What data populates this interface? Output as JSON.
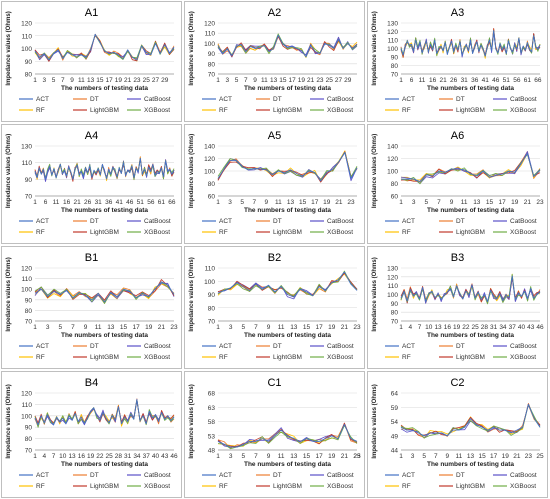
{
  "page": {
    "models": [
      {
        "name": "ACT",
        "color": "#4472C4"
      },
      {
        "name": "DT",
        "color": "#ED7D31"
      },
      {
        "name": "CatBoost",
        "color": "#5B4FC9"
      },
      {
        "name": "RF",
        "color": "#FFC000"
      },
      {
        "name": "LightGBM",
        "color": "#C0392B"
      },
      {
        "name": "XGBoost",
        "color": "#70AD47"
      }
    ],
    "common_xlabel": "The numbers of testing data",
    "common_ylabel": "Impedance values  (Ohms)"
  },
  "chart_data": [
    {
      "type": "line",
      "title": "A1",
      "xlabel": "The numbers of testing data",
      "ylabel": "Impedance values  (Ohms)",
      "ylim": [
        80,
        120
      ],
      "yticks": [
        80,
        90,
        100,
        110,
        120
      ],
      "xticks": [
        1,
        3,
        5,
        7,
        9,
        11,
        13,
        15,
        17,
        19,
        21,
        23,
        25,
        27,
        29
      ],
      "legend": [
        "ACT",
        "DT",
        "CatBoost",
        "RF",
        "LightGBM",
        "XGBoost"
      ],
      "series": [
        {
          "name": "ACT",
          "values": [
            98,
            93,
            96,
            91,
            96,
            99,
            92,
            97,
            95,
            94,
            95,
            93,
            99,
            111,
            105,
            98,
            96,
            97,
            95,
            92,
            99,
            93,
            91,
            102,
            97,
            95,
            104,
            96,
            103,
            96,
            101
          ]
        }
      ]
    },
    {
      "type": "line",
      "title": "A2",
      "xlabel": "The numbers of testing data",
      "ylabel": "Impedance values  (Ohms)",
      "ylim": [
        70,
        120
      ],
      "yticks": [
        70,
        80,
        90,
        100,
        110,
        120
      ],
      "xticks": [
        1,
        3,
        5,
        7,
        9,
        11,
        13,
        15,
        17,
        19,
        21,
        23,
        25,
        27,
        29
      ],
      "legend": [
        "ACT",
        "DT",
        "CatBoost",
        "RF",
        "LightGBM",
        "XGBoost"
      ],
      "series": [
        {
          "name": "ACT",
          "values": [
            98,
            90,
            95,
            88,
            97,
            99,
            92,
            97,
            95,
            96,
            98,
            92,
            95,
            108,
            99,
            96,
            97,
            95,
            93,
            87,
            98,
            92,
            90,
            100,
            98,
            95,
            104,
            95,
            100,
            95,
            99
          ]
        }
      ]
    },
    {
      "type": "line",
      "title": "A3",
      "xlabel": "The numbers of testing data",
      "ylabel": "Impedance values  (Ohms)",
      "ylim": [
        70,
        130
      ],
      "yticks": [
        70,
        80,
        90,
        100,
        110,
        120,
        130
      ],
      "xticks": [
        1,
        6,
        11,
        16,
        21,
        26,
        31,
        36,
        41,
        46,
        51,
        56,
        61,
        66
      ],
      "legend": [
        "ACT",
        "DT",
        "CatBoost",
        "RF",
        "LightGBM",
        "XGBoost"
      ],
      "series": [
        {
          "name": "ACT",
          "values": [
            100,
            92,
            103,
            108,
            104,
            105,
            97,
            110,
            100,
            108,
            95,
            102,
            109,
            96,
            105,
            98,
            110,
            94,
            100,
            103,
            97,
            107,
            93,
            101,
            109,
            96,
            104,
            98,
            108,
            92,
            100,
            105,
            97,
            110,
            94,
            102,
            108,
            96,
            104,
            99,
            91,
            103,
            110,
            97,
            121,
            100,
            95,
            106,
            98,
            103,
            94,
            109,
            100,
            96,
            105,
            99,
            112,
            95,
            103,
            98,
            107,
            100,
            96,
            115,
            101,
            99,
            104
          ]
        }
      ]
    },
    {
      "type": "line",
      "title": "A4",
      "xlabel": "The numbers of testing data",
      "ylabel": "Impedance values  (Ohms)",
      "ylim": [
        70,
        130
      ],
      "yticks": [
        70,
        90,
        110,
        130
      ],
      "xticks": [
        1,
        6,
        11,
        16,
        21,
        26,
        31,
        36,
        41,
        46,
        51,
        56,
        61,
        66
      ],
      "legend": [
        "ACT",
        "DT",
        "CatBoost",
        "RF",
        "LightGBM",
        "XGBoost"
      ],
      "series": [
        {
          "name": "ACT",
          "values": [
            100,
            92,
            104,
            96,
            102,
            90,
            100,
            106,
            95,
            103,
            92,
            100,
            108,
            96,
            101,
            94,
            105,
            99,
            90,
            103,
            107,
            95,
            100,
            93,
            104,
            98,
            106,
            92,
            101,
            97,
            103,
            95,
            108,
            99,
            91,
            102,
            96,
            105,
            100,
            93,
            104,
            97,
            110,
            95,
            101,
            98,
            106,
            92,
            103,
            99,
            115,
            96,
            102,
            94,
            105,
            99,
            108,
            95,
            100,
            97,
            104,
            93,
            112,
            99,
            102,
            96,
            101
          ]
        }
      ]
    },
    {
      "type": "line",
      "title": "A5",
      "xlabel": "The numbers of testing data",
      "ylabel": "Impedance values  (Ohms)",
      "ylim": [
        60,
        140
      ],
      "yticks": [
        60,
        80,
        100,
        120,
        140
      ],
      "xticks": [
        1,
        3,
        5,
        7,
        9,
        11,
        13,
        15,
        17,
        19,
        21,
        23
      ],
      "legend": [
        "ACT",
        "DT",
        "CatBoost",
        "RF",
        "LightGBM",
        "XGBoost"
      ],
      "series": [
        {
          "name": "ACT",
          "values": [
            88,
            103,
            117,
            117,
            107,
            102,
            104,
            103,
            102,
            94,
            100,
            97,
            102,
            96,
            92,
            100,
            98,
            84,
            98,
            103,
            115,
            130,
            88,
            105
          ]
        }
      ]
    },
    {
      "type": "line",
      "title": "A6",
      "xlabel": "The numbers of testing data",
      "ylabel": "Impedance values  (Ohms)",
      "ylim": [
        60,
        140
      ],
      "yticks": [
        60,
        80,
        100,
        120,
        140
      ],
      "xticks": [
        1,
        3,
        5,
        7,
        9,
        11,
        13,
        15,
        17,
        19,
        21,
        23
      ],
      "legend": [
        "ACT",
        "DT",
        "CatBoost",
        "RF",
        "LightGBM",
        "XGBoost"
      ],
      "series": [
        {
          "name": "ACT",
          "values": [
            87,
            87,
            87,
            83,
            94,
            92,
            100,
            98,
            103,
            103,
            102,
            96,
            92,
            100,
            90,
            93,
            95,
            100,
            98,
            112,
            128,
            91,
            101
          ]
        }
      ]
    },
    {
      "type": "line",
      "title": "B1",
      "xlabel": "The numbers of testing data",
      "ylabel": "Impedance values  (Ohms)",
      "ylim": [
        70,
        120
      ],
      "yticks": [
        70,
        80,
        90,
        100,
        110,
        120
      ],
      "xticks": [
        1,
        3,
        5,
        7,
        9,
        11,
        13,
        15,
        17,
        19,
        21,
        23
      ],
      "legend": [
        "ACT",
        "DT",
        "CatBoost",
        "RF",
        "LightGBM",
        "XGBoost"
      ],
      "series": [
        {
          "name": "ACT",
          "values": [
            96,
            100,
            93,
            98,
            95,
            99,
            92,
            97,
            94,
            90,
            96,
            88,
            97,
            93,
            100,
            98,
            92,
            96,
            93,
            100,
            107,
            104,
            95
          ]
        }
      ]
    },
    {
      "type": "line",
      "title": "B2",
      "xlabel": "The numbers of testing data",
      "ylabel": "Impedance values  (Ohms)",
      "ylim": [
        70,
        110
      ],
      "yticks": [
        70,
        80,
        90,
        100,
        110
      ],
      "xticks": [
        1,
        3,
        5,
        7,
        9,
        11,
        13,
        15,
        17,
        19,
        21,
        23
      ],
      "legend": [
        "ACT",
        "DT",
        "CatBoost",
        "RF",
        "LightGBM",
        "XGBoost"
      ],
      "series": [
        {
          "name": "ACT",
          "values": [
            91,
            93,
            95,
            99,
            96,
            93,
            98,
            94,
            97,
            92,
            96,
            90,
            88,
            94,
            92,
            89,
            96,
            93,
            99,
            101,
            107,
            98,
            93
          ]
        }
      ]
    },
    {
      "type": "line",
      "title": "B3",
      "xlabel": "The numbers of testing data",
      "ylabel": "Impedance values  (Ohms)",
      "ylim": [
        70,
        130
      ],
      "yticks": [
        70,
        80,
        90,
        100,
        110,
        120,
        130
      ],
      "xticks": [
        1,
        4,
        7,
        10,
        13,
        16,
        19,
        22,
        25,
        28,
        31,
        34,
        37,
        40,
        43,
        46
      ],
      "legend": [
        "ACT",
        "DT",
        "CatBoost",
        "RF",
        "LightGBM",
        "XGBoost"
      ],
      "series": [
        {
          "name": "ACT",
          "values": [
            96,
            104,
            93,
            106,
            98,
            102,
            95,
            108,
            92,
            100,
            104,
            96,
            101,
            94,
            99,
            103,
            107,
            97,
            110,
            101,
            95,
            104,
            99,
            111,
            96,
            103,
            94,
            100,
            92,
            105,
            98,
            95,
            101,
            93,
            100,
            96,
            121,
            94,
            102,
            98,
            104,
            95,
            107,
            96,
            100,
            103
          ]
        }
      ]
    },
    {
      "type": "line",
      "title": "B4",
      "xlabel": "The numbers of testing data",
      "ylabel": "Impedance values  (Ohms)",
      "ylim": [
        70,
        120
      ],
      "yticks": [
        70,
        80,
        90,
        100,
        110,
        120
      ],
      "xticks": [
        1,
        4,
        7,
        10,
        13,
        16,
        19,
        22,
        25,
        28,
        31,
        34,
        37,
        40,
        43,
        46
      ],
      "legend": [
        "ACT",
        "DT",
        "CatBoost",
        "RF",
        "LightGBM",
        "XGBoost"
      ],
      "series": [
        {
          "name": "ACT",
          "values": [
            98,
            92,
            100,
            94,
            101,
            96,
            92,
            99,
            95,
            98,
            93,
            100,
            96,
            102,
            95,
            99,
            93,
            98,
            104,
            107,
            100,
            96,
            103,
            98,
            94,
            100,
            96,
            108,
            93,
            99,
            95,
            101,
            97,
            114,
            96,
            100,
            93,
            104,
            98,
            101,
            95,
            103,
            97,
            100,
            96,
            99
          ]
        }
      ]
    },
    {
      "type": "line",
      "title": "C1",
      "xlabel": "The numbers of testing data",
      "ylabel": "Impedance values  (Ohms)",
      "ylim": [
        48,
        68
      ],
      "yticks": [
        48,
        53,
        58,
        63,
        68
      ],
      "xticks": [
        1,
        3,
        5,
        7,
        9,
        11,
        13,
        15,
        17,
        19,
        21,
        23,
        25
      ],
      "legend": [
        "ACT",
        "DT",
        "CatBoost",
        "RF",
        "LightGBM",
        "XGBoost"
      ],
      "series": [
        {
          "name": "ACT",
          "values": [
            51,
            50,
            49,
            49,
            50,
            51,
            51,
            52,
            51,
            53,
            55,
            53,
            52,
            51,
            52,
            51,
            51,
            52,
            53,
            52,
            57,
            52,
            51
          ]
        }
      ]
    },
    {
      "type": "line",
      "title": "C2",
      "xlabel": "The numbers of testing data",
      "ylabel": "Impedance values  (Ohms)",
      "ylim": [
        44,
        64
      ],
      "yticks": [
        44,
        49,
        54,
        59,
        64
      ],
      "xticks": [
        1,
        3,
        5,
        7,
        9,
        11,
        13,
        15,
        17,
        19,
        21,
        23,
        25
      ],
      "legend": [
        "ACT",
        "DT",
        "CatBoost",
        "RF",
        "LightGBM",
        "XGBoost"
      ],
      "series": [
        {
          "name": "ACT",
          "values": [
            52,
            51,
            51,
            50,
            49,
            50,
            50,
            50,
            49,
            51,
            51,
            52,
            55,
            53,
            52,
            51,
            52,
            51,
            51,
            50,
            51,
            52,
            60,
            55,
            52
          ]
        }
      ]
    }
  ]
}
